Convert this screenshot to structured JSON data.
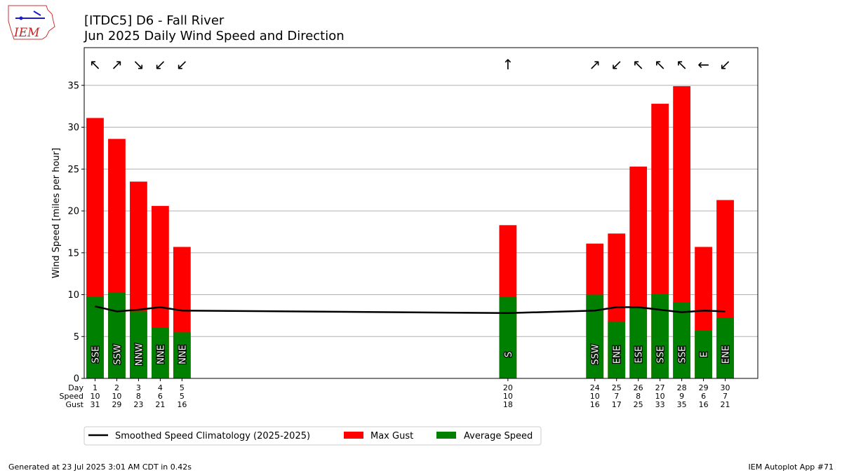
{
  "logo": {
    "text": "IEM"
  },
  "title_line1": "[ITDC5] D6 - Fall River",
  "title_line2": "Jun 2025 Daily Wind Speed and Direction",
  "row_labels": {
    "day": "Day",
    "speed": "Speed",
    "gust": "Gust"
  },
  "footer": {
    "left": "Generated at 23 Jul 2025 3:01 AM CDT in 0.42s",
    "right": "IEM Autoplot App #71"
  },
  "colors": {
    "gust": "#ff0000",
    "avg": "#008000",
    "clim": "#000000",
    "grid": "#b0b0b0"
  },
  "chart_data": {
    "type": "bar",
    "ylabel": "Wind Speed [miles per hour]",
    "ylim": [
      0,
      39.5
    ],
    "xlim": [
      0.5,
      31.5
    ],
    "yticks": [
      0,
      5,
      10,
      15,
      20,
      25,
      30,
      35
    ],
    "grid": true,
    "legend_placement": "bottom",
    "legend": [
      "Smoothed Speed Climatology (2025-2025)",
      "Max Gust",
      "Average Speed"
    ],
    "days": [
      {
        "day": 1,
        "avg": 9.8,
        "gust": 31.1,
        "dir": "SSE",
        "arrow": "↖",
        "speed_label": "10",
        "gust_label": "31"
      },
      {
        "day": 2,
        "avg": 10.3,
        "gust": 28.6,
        "dir": "SSW",
        "arrow": "↗",
        "speed_label": "10",
        "gust_label": "29"
      },
      {
        "day": 3,
        "avg": 8.0,
        "gust": 23.5,
        "dir": "NNW",
        "arrow": "↘",
        "speed_label": "8",
        "gust_label": "23"
      },
      {
        "day": 4,
        "avg": 6.1,
        "gust": 20.6,
        "dir": "NNE",
        "arrow": "↙",
        "speed_label": "6",
        "gust_label": "21"
      },
      {
        "day": 5,
        "avg": 5.5,
        "gust": 15.7,
        "dir": "NNE",
        "arrow": "↙",
        "speed_label": "5",
        "gust_label": "16"
      },
      {
        "day": 20,
        "avg": 9.7,
        "gust": 18.3,
        "dir": "S",
        "arrow": "↑",
        "speed_label": "10",
        "gust_label": "18"
      },
      {
        "day": 24,
        "avg": 10.0,
        "gust": 16.1,
        "dir": "SSW",
        "arrow": "↗",
        "speed_label": "10",
        "gust_label": "16"
      },
      {
        "day": 25,
        "avg": 6.8,
        "gust": 17.3,
        "dir": "ENE",
        "arrow": "↙",
        "speed_label": "7",
        "gust_label": "17"
      },
      {
        "day": 26,
        "avg": 8.4,
        "gust": 25.3,
        "dir": "ESE",
        "arrow": "↖",
        "speed_label": "8",
        "gust_label": "25"
      },
      {
        "day": 27,
        "avg": 10.1,
        "gust": 32.8,
        "dir": "SSE",
        "arrow": "↖",
        "speed_label": "10",
        "gust_label": "33"
      },
      {
        "day": 28,
        "avg": 9.1,
        "gust": 34.9,
        "dir": "SSE",
        "arrow": "↖",
        "speed_label": "9",
        "gust_label": "35"
      },
      {
        "day": 29,
        "avg": 5.7,
        "gust": 15.7,
        "dir": "E",
        "arrow": "←",
        "speed_label": "6",
        "gust_label": "16"
      },
      {
        "day": 30,
        "avg": 7.2,
        "gust": 21.3,
        "dir": "ENE",
        "arrow": "↙",
        "speed_label": "7",
        "gust_label": "21"
      }
    ],
    "climatology": {
      "x": [
        1,
        2,
        3,
        4,
        5,
        20,
        24,
        25,
        26,
        27,
        28,
        29,
        30
      ],
      "y": [
        8.6,
        8.0,
        8.2,
        8.5,
        8.1,
        7.8,
        8.1,
        8.5,
        8.5,
        8.2,
        7.9,
        8.1,
        8.0
      ]
    }
  }
}
